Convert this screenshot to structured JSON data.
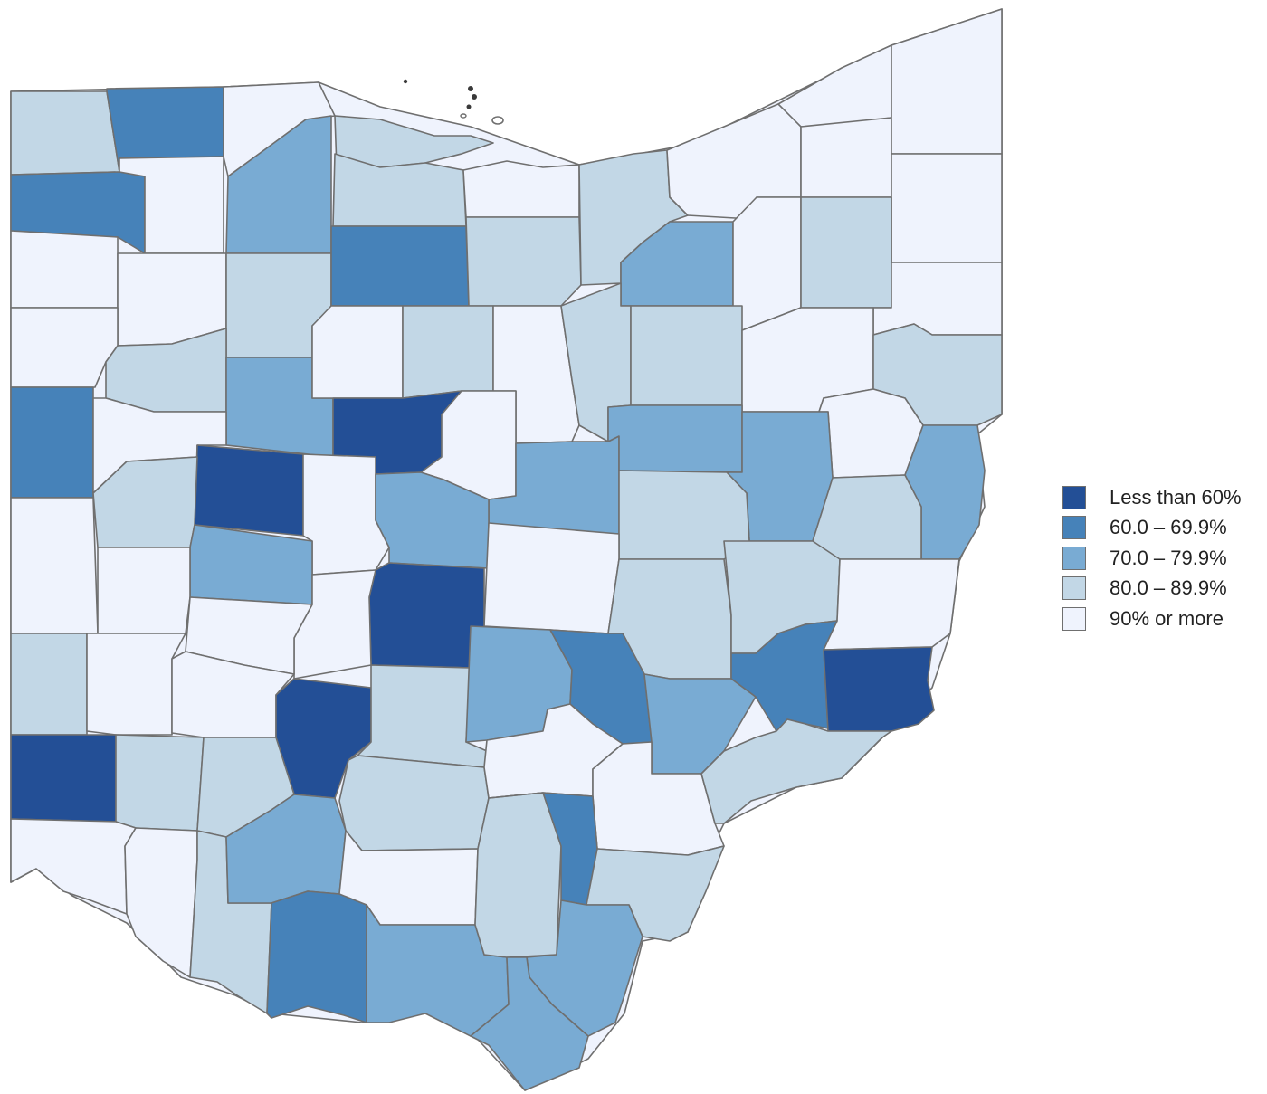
{
  "legend": {
    "items": [
      {
        "label": "Less than 60%",
        "color": "#234f96"
      },
      {
        "label": "60.0 – 69.9%",
        "color": "#4682b9"
      },
      {
        "label": "70.0 – 79.9%",
        "color": "#79abd3"
      },
      {
        "label": "80.0 – 89.9%",
        "color": "#c2d7e6"
      },
      {
        "label": "90% or more",
        "color": "#eff3fd"
      }
    ]
  },
  "map": {
    "region": "Ohio",
    "unit": "county",
    "class_colors": [
      "#234f96",
      "#4682b9",
      "#79abd3",
      "#c2d7e6",
      "#eff3fd"
    ]
  }
}
